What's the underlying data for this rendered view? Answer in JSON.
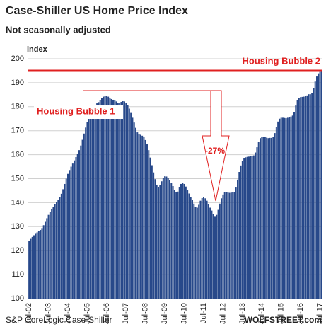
{
  "chart_data": {
    "type": "bar",
    "title": "Case-Shiller US Home Price Index",
    "subtitle": "Not seasonally adjusted",
    "y_label": "index",
    "source": "S&P CoreLogic Case-Shiller",
    "credit": "WOLFSTREET.com",
    "annotations": [
      "Housing Bubble 1",
      "Housing Bubble 2",
      "-27%"
    ],
    "reference_line": 195,
    "reference_color": "#e02020",
    "color": "#27488a",
    "grid": true,
    "ylim": [
      100,
      200
    ],
    "yticks": [
      100,
      110,
      120,
      130,
      140,
      150,
      160,
      170,
      180,
      190,
      200
    ],
    "categories": [
      "Jul-02",
      null,
      null,
      null,
      null,
      null,
      null,
      null,
      null,
      null,
      null,
      null,
      "Jul-03",
      null,
      null,
      null,
      null,
      null,
      null,
      null,
      null,
      null,
      null,
      null,
      "Jul-04",
      null,
      null,
      null,
      null,
      null,
      null,
      null,
      null,
      null,
      null,
      null,
      "Jul-05",
      null,
      null,
      null,
      null,
      null,
      null,
      null,
      null,
      null,
      null,
      null,
      "Jul-06",
      null,
      null,
      null,
      null,
      null,
      null,
      null,
      null,
      null,
      null,
      null,
      "Jul-07",
      null,
      null,
      null,
      null,
      null,
      null,
      null,
      null,
      null,
      null,
      null,
      "Jul-08",
      null,
      null,
      null,
      null,
      null,
      null,
      null,
      null,
      null,
      null,
      null,
      "Jul-09",
      null,
      null,
      null,
      null,
      null,
      null,
      null,
      null,
      null,
      null,
      null,
      "Jul-10",
      null,
      null,
      null,
      null,
      null,
      null,
      null,
      null,
      null,
      null,
      null,
      "Jul-11",
      null,
      null,
      null,
      null,
      null,
      null,
      null,
      null,
      null,
      null,
      null,
      "Jul-12",
      null,
      null,
      null,
      null,
      null,
      null,
      null,
      null,
      null,
      null,
      null,
      "Jul-13",
      null,
      null,
      null,
      null,
      null,
      null,
      null,
      null,
      null,
      null,
      null,
      "Jul-14",
      null,
      null,
      null,
      null,
      null,
      null,
      null,
      null,
      null,
      null,
      null,
      "Jul-15",
      null,
      null,
      null,
      null,
      null,
      null,
      null,
      null,
      null,
      null,
      null,
      "Jul-16",
      null,
      null,
      null,
      null,
      null,
      null,
      null,
      null,
      null,
      null,
      null,
      "Jul-17",
      null
    ],
    "values": [
      124.0,
      124.9,
      125.7,
      126.4,
      127.0,
      127.6,
      128.1,
      128.6,
      129.4,
      130.6,
      132.0,
      133.5,
      134.9,
      136.2,
      137.3,
      138.3,
      139.3,
      140.3,
      141.3,
      142.3,
      143.7,
      145.6,
      147.8,
      150.0,
      152.0,
      153.6,
      155.0,
      156.3,
      157.6,
      159.0,
      160.4,
      161.9,
      163.8,
      166.2,
      168.8,
      171.3,
      173.5,
      175.4,
      177.0,
      178.3,
      179.5,
      180.6,
      181.4,
      181.9,
      182.6,
      183.5,
      184.2,
      184.6,
      184.5,
      184.2,
      183.7,
      183.2,
      182.9,
      182.6,
      182.2,
      181.7,
      181.6,
      182.0,
      182.3,
      182.2,
      181.7,
      180.7,
      179.2,
      177.4,
      175.4,
      173.4,
      171.2,
      169.3,
      168.5,
      168.3,
      167.9,
      167.3,
      166.1,
      164.3,
      161.9,
      158.8,
      155.6,
      152.6,
      149.8,
      147.5,
      146.6,
      147.3,
      148.9,
      150.4,
      151.0,
      150.9,
      150.4,
      149.5,
      148.2,
      146.9,
      145.4,
      144.3,
      144.6,
      146.4,
      147.8,
      148.2,
      147.8,
      146.7,
      145.4,
      143.8,
      142.3,
      141.1,
      139.6,
      138.3,
      137.9,
      139.1,
      140.8,
      141.9,
      142.2,
      141.8,
      140.8,
      139.3,
      137.9,
      136.7,
      135.4,
      134.4,
      134.9,
      137.0,
      139.6,
      141.8,
      143.4,
      144.3,
      144.4,
      144.3,
      144.1,
      144.2,
      144.3,
      144.5,
      146.3,
      149.6,
      152.8,
      155.5,
      157.3,
      158.4,
      158.9,
      159.1,
      159.2,
      159.4,
      159.5,
      159.7,
      160.9,
      163.1,
      165.4,
      166.9,
      167.5,
      167.5,
      167.3,
      167.1,
      166.9,
      167.0,
      167.0,
      167.4,
      169.0,
      171.5,
      173.8,
      175.0,
      175.4,
      175.4,
      175.3,
      175.2,
      175.4,
      175.8,
      175.9,
      176.3,
      177.8,
      180.5,
      182.6,
      183.6,
      184.0,
      184.1,
      184.2,
      184.4,
      184.7,
      185.2,
      185.2,
      185.8,
      187.9,
      190.5,
      192.6,
      193.9,
      194.5,
      194.8
    ]
  }
}
